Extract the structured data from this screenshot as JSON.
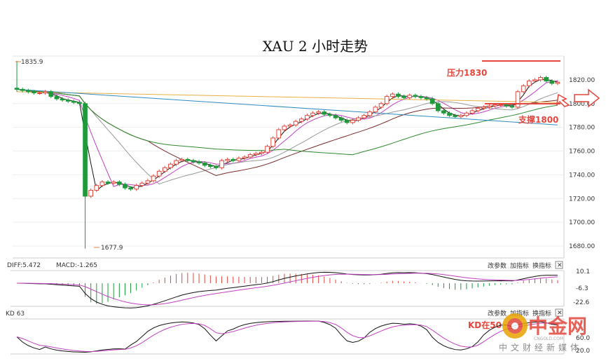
{
  "chart_data": {
    "type": "candlestick",
    "title": "XAU 2 小时走势",
    "ylim": [
      1670,
      1840
    ],
    "y_ticks": [
      "1820.00",
      "1800.00",
      "1780.00",
      "1760.00",
      "1740.00",
      "1720.00",
      "1700.00",
      "1680.00"
    ],
    "y_tick_values": [
      1820,
      1800,
      1780,
      1760,
      1740,
      1720,
      1700,
      1680
    ],
    "high_marker": "1835.9",
    "low_marker": "1677.9",
    "annotations": {
      "resistance": "压力1830",
      "support": "支撑1800"
    },
    "resistance_level": 1830,
    "support_level": 1800,
    "candles_close": [
      1812,
      1811,
      1810,
      1809,
      1809,
      1810,
      1806,
      1804,
      1803,
      1802,
      1801,
      1800,
      1722,
      1727,
      1731,
      1734,
      1733,
      1734,
      1732,
      1729,
      1728,
      1731,
      1733,
      1735,
      1739,
      1743,
      1746,
      1749,
      1752,
      1753,
      1752,
      1751,
      1750,
      1748,
      1747,
      1746,
      1752,
      1753,
      1752,
      1754,
      1755,
      1757,
      1758,
      1759,
      1764,
      1771,
      1778,
      1781,
      1782,
      1785,
      1787,
      1790,
      1792,
      1793,
      1791,
      1790,
      1788,
      1786,
      1784,
      1786,
      1788,
      1790,
      1793,
      1797,
      1800,
      1806,
      1808,
      1806,
      1805,
      1807,
      1806,
      1805,
      1804,
      1800,
      1794,
      1792,
      1790,
      1789,
      1790,
      1792,
      1794,
      1796,
      1797,
      1798,
      1799,
      1799,
      1798,
      1797,
      1810,
      1815,
      1819,
      1820,
      1822,
      1819,
      1817,
      1818
    ]
  },
  "macd": {
    "label_dif": "DIFF:5.472",
    "label_dea": "MACD:-1.265",
    "buttons": [
      "改参数",
      "加指标",
      "换指标"
    ],
    "close_glyph": "✕",
    "scale": [
      "10.1",
      "-6.3",
      "-22.6"
    ]
  },
  "kd": {
    "label": "KD 63",
    "buttons": [
      "改参数",
      "加指标",
      "换指标"
    ],
    "close_glyph": "✕",
    "scale": [
      "60.0",
      "20.0"
    ],
    "note": "KD在50"
  },
  "watermark": {
    "logo": "中金网",
    "site": "CNGOLD.COM",
    "slogan": "中文财经新媒体"
  },
  "colors": {
    "up": "#e2463c",
    "down": "#1f9a3a",
    "accent": "#e2463c"
  }
}
